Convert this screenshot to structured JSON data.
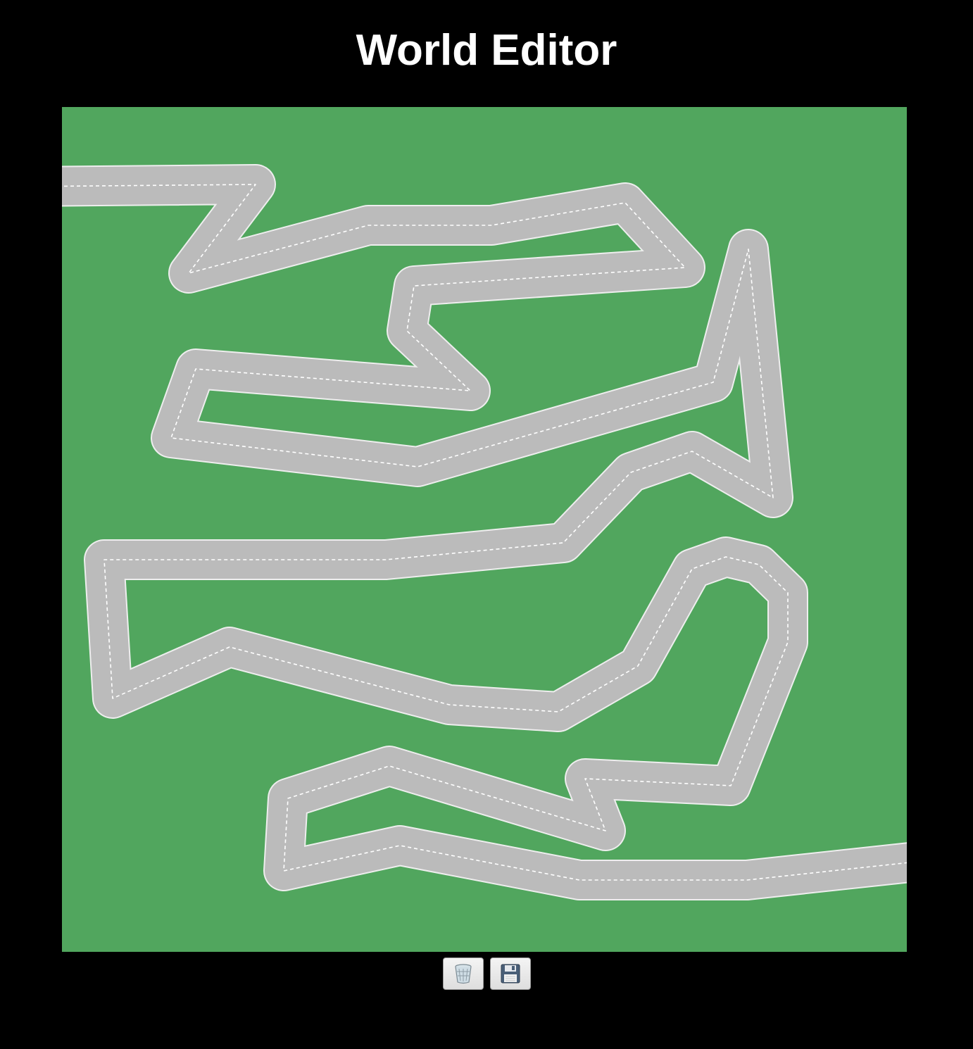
{
  "app": {
    "title": "World Editor"
  },
  "world": {
    "grass_color": "#51a65e",
    "road_color": "#bbbbbb",
    "road_border_color": "#eeeeee",
    "lane_marking_color": "#ffffff"
  },
  "toolbar": {
    "buttons": [
      {
        "name": "dispose-button",
        "icon": "trash-icon"
      },
      {
        "name": "save-button",
        "icon": "floppy-disk-icon"
      }
    ]
  }
}
